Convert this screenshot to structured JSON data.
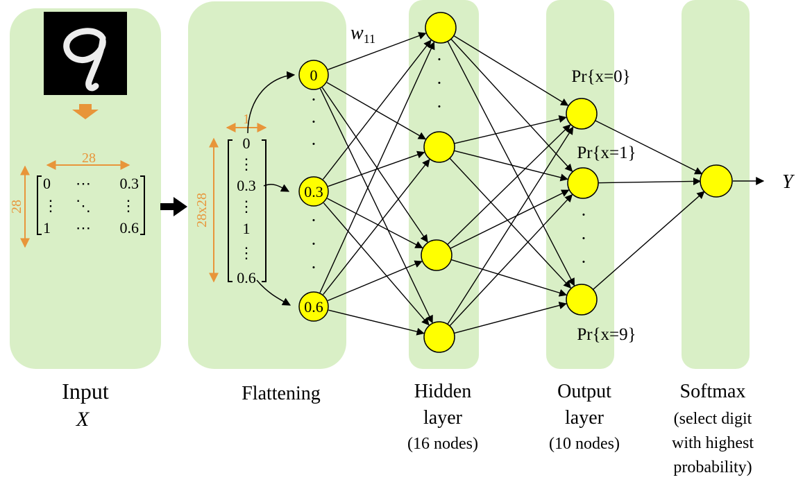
{
  "colors": {
    "panel": "#d9efc6",
    "node_fill": "#ffff00",
    "node_stroke": "#000000",
    "dimension_arrow": "#e8953a",
    "connection": "#000000"
  },
  "input": {
    "caption": "Input",
    "variable": "X",
    "image_description_icon": "handwritten-digit-nine-image",
    "matrix": {
      "width_label": "28",
      "height_label": "28",
      "rows": [
        [
          "0",
          "⋯",
          "0.3"
        ],
        [
          "⋮",
          "⋱",
          "⋮"
        ],
        [
          "1",
          "⋯",
          "0.6"
        ]
      ]
    }
  },
  "flattening": {
    "caption": "Flattening",
    "vector_width_label": "1",
    "vector_height_label": "28x28",
    "vector_entries": [
      "0",
      "⋮",
      "0.3",
      "⋮",
      "1",
      "⋮",
      "0.6"
    ],
    "nodes": [
      "0",
      "0.3",
      "0.6"
    ]
  },
  "weight_label": "w",
  "weight_subscript": "11",
  "hidden": {
    "caption_line1": "Hidden",
    "caption_line2": "layer",
    "caption_line3": "(16 nodes)"
  },
  "output": {
    "caption_line1": "Output",
    "caption_line2": "layer",
    "caption_line3": "(10 nodes)",
    "labels": [
      "Pr{x=0}",
      "Pr{x=1}",
      "Pr{x=9}"
    ]
  },
  "softmax": {
    "caption_line1": "Softmax",
    "caption_line2": "(select digit",
    "caption_line3": "with highest",
    "caption_line4": "probability)",
    "result": "Y"
  },
  "ellipsis_dot": "·"
}
